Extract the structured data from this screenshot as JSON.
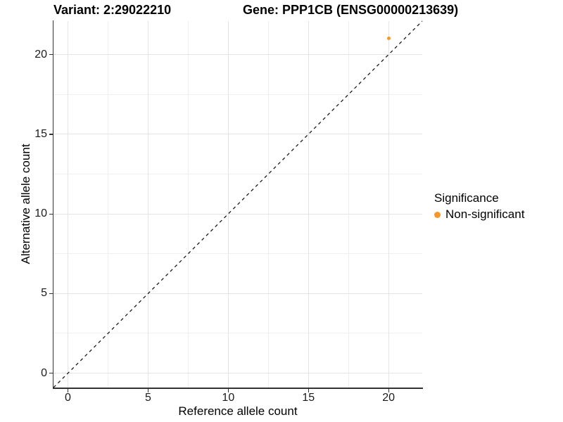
{
  "chart_data": {
    "type": "scatter",
    "title_left": "Variant: 2:29022210",
    "title_right": "Gene: PPP1CB (ENSG00000213639)",
    "xlabel": "Reference allele count",
    "ylabel": "Alternative allele count",
    "xlim": [
      -0.9,
      22.1
    ],
    "ylim": [
      -0.9,
      22.1
    ],
    "x_major_ticks": [
      0,
      5,
      10,
      15,
      20
    ],
    "y_major_ticks": [
      0,
      5,
      10,
      15,
      20
    ],
    "x_minor_ticks": [
      2.5,
      7.5,
      12.5,
      17.5
    ],
    "y_minor_ticks": [
      2.5,
      7.5,
      12.5,
      17.5
    ],
    "grid": true,
    "series": [
      {
        "name": "Non-significant",
        "color": "#F89727",
        "points": [
          {
            "x": 20,
            "y": 21
          }
        ]
      }
    ],
    "reference_line": {
      "type": "identity",
      "from": [
        -0.9,
        -0.9
      ],
      "to": [
        22.1,
        22.1
      ],
      "style": "dashed",
      "color": "#1A1A1A"
    },
    "legend": {
      "title": "Significance",
      "position": "right",
      "items": [
        {
          "label": "Non-significant",
          "color": "#F89727"
        }
      ]
    },
    "colors": {
      "point": "#F89727",
      "axis_line": "#333333",
      "grid_major": "#E4E4E4",
      "grid_minor": "#EFEFEF",
      "text": "#000000",
      "background": "#FFFFFF"
    }
  }
}
